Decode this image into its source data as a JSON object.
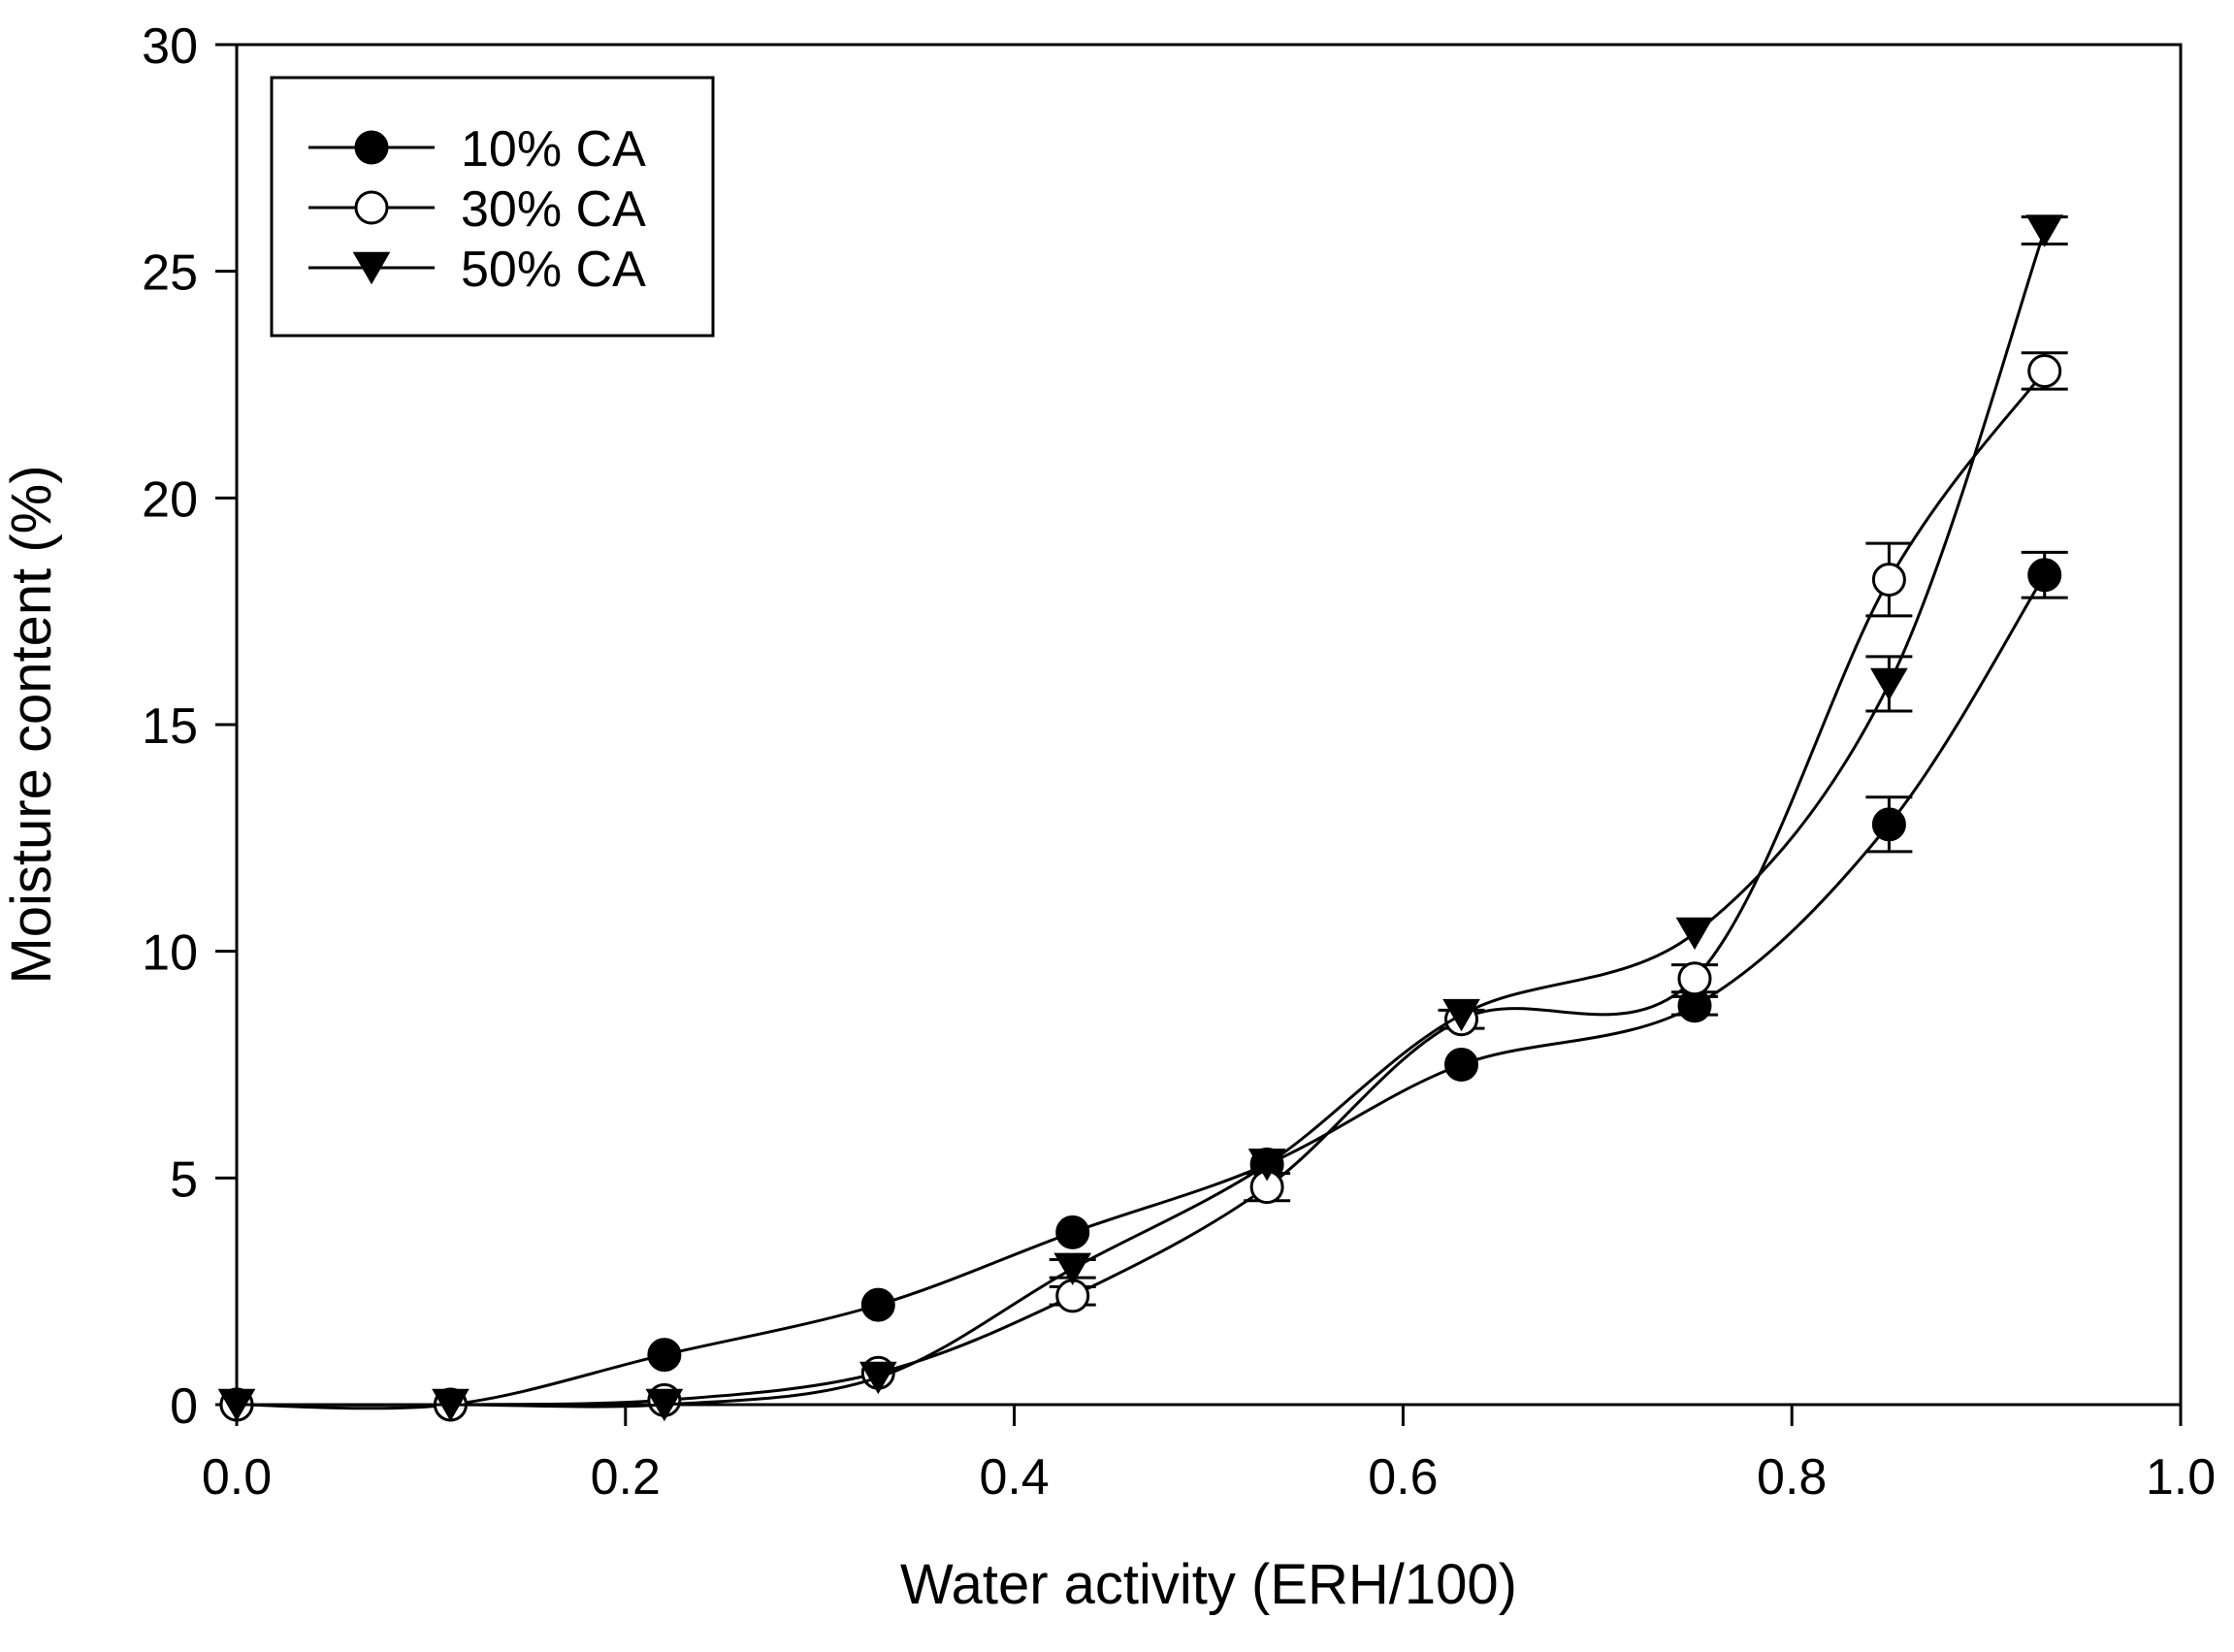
{
  "chart_data": {
    "type": "line",
    "title": "",
    "xlabel": "Water activity (ERH/100)",
    "ylabel": "Moisture content (%)",
    "xlim": [
      0.0,
      1.0
    ],
    "ylim": [
      0,
      30
    ],
    "xticks": [
      "0.0",
      "0.2",
      "0.4",
      "0.6",
      "0.8",
      "1.0"
    ],
    "yticks": [
      "0",
      "5",
      "10",
      "15",
      "20",
      "25",
      "30"
    ],
    "grid": false,
    "legend_position": "top-left",
    "series": [
      {
        "name": "10% CA",
        "marker": "filled-circle",
        "x": [
          0.0,
          0.11,
          0.22,
          0.33,
          0.43,
          0.53,
          0.63,
          0.75,
          0.85,
          0.93
        ],
        "y": [
          0.0,
          0.0,
          1.1,
          2.2,
          3.8,
          5.3,
          7.5,
          8.8,
          12.8,
          18.3
        ],
        "err": [
          0,
          0,
          0,
          0,
          0,
          0,
          0,
          0.2,
          0.6,
          0.5
        ]
      },
      {
        "name": "30% CA",
        "marker": "open-circle",
        "x": [
          0.0,
          0.11,
          0.22,
          0.33,
          0.43,
          0.53,
          0.63,
          0.75,
          0.85,
          0.93
        ],
        "y": [
          0.0,
          0.0,
          0.1,
          0.7,
          2.4,
          4.8,
          8.5,
          9.4,
          18.2,
          22.8
        ],
        "err": [
          0,
          0,
          0,
          0,
          0.2,
          0.3,
          0.2,
          0.3,
          0.8,
          0.4
        ]
      },
      {
        "name": "50% CA",
        "marker": "filled-triangle-down",
        "x": [
          0.0,
          0.11,
          0.22,
          0.33,
          0.43,
          0.53,
          0.63,
          0.75,
          0.85,
          0.93
        ],
        "y": [
          0.0,
          0.0,
          0.0,
          0.6,
          3.0,
          5.3,
          8.6,
          10.4,
          15.9,
          25.9
        ],
        "err": [
          0,
          0,
          0,
          0,
          0.2,
          0,
          0,
          0,
          0.6,
          0.3
        ]
      }
    ]
  }
}
